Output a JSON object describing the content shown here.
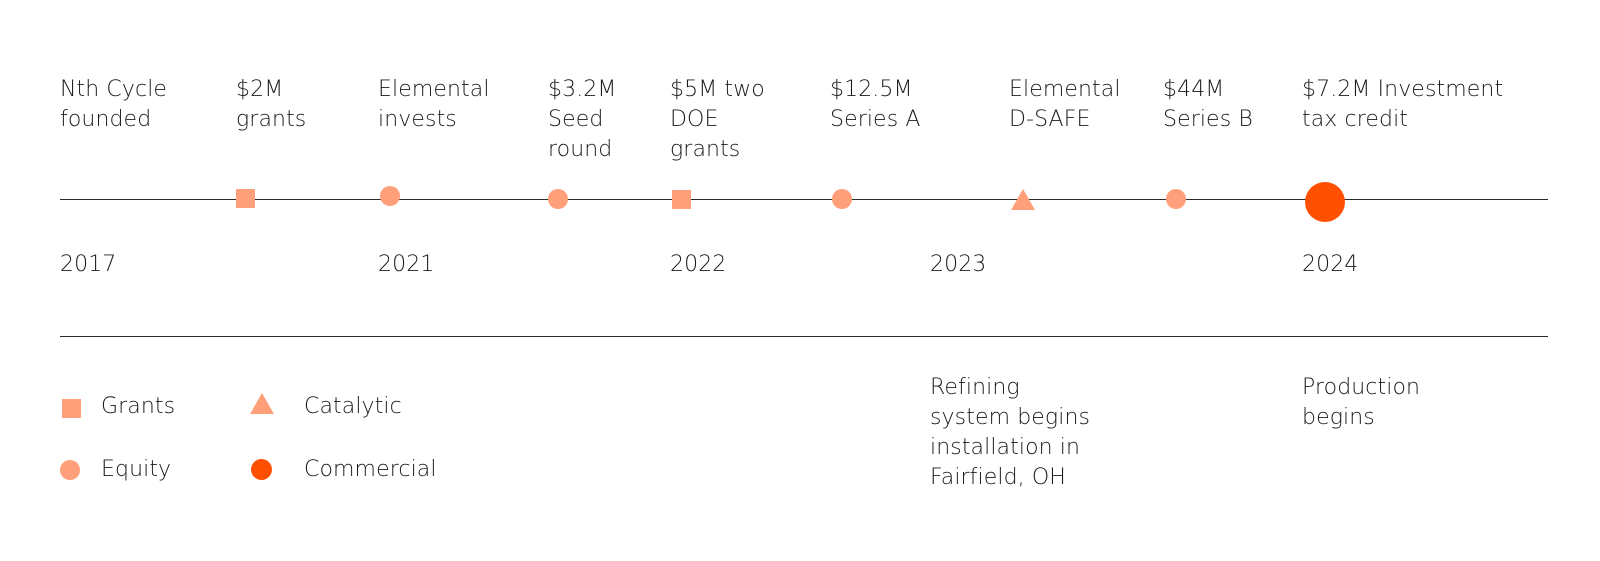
{
  "colors": {
    "light": "#ffa07a",
    "commercial": "#ff5000",
    "line": "#2a2a2a"
  },
  "events": [
    {
      "label": "Nth Cycle\nfounded",
      "type": "none"
    },
    {
      "label": "$2M\ngrants",
      "type": "grants"
    },
    {
      "label": "Elemental\ninvests",
      "type": "equity"
    },
    {
      "label": "$3.2M\nSeed\nround",
      "type": "equity"
    },
    {
      "label": "$5M two\nDOE\ngrants",
      "type": "grants"
    },
    {
      "label": "$12.5M\nSeries A",
      "type": "equity"
    },
    {
      "label": "Elemental\nD-SAFE",
      "type": "catalytic"
    },
    {
      "label": "$44M\nSeries B",
      "type": "equity"
    },
    {
      "label": "$7.2M Investment\ntax credit",
      "type": "commercial"
    }
  ],
  "years": [
    "2017",
    "2021",
    "2022",
    "2023",
    "2024"
  ],
  "notes": [
    "Refining\nsystem begins\ninstallation in\nFairfield, OH",
    "Production\nbegins"
  ],
  "legend": {
    "grants": "Grants",
    "equity": "Equity",
    "catalytic": "Catalytic",
    "commercial": "Commercial"
  }
}
